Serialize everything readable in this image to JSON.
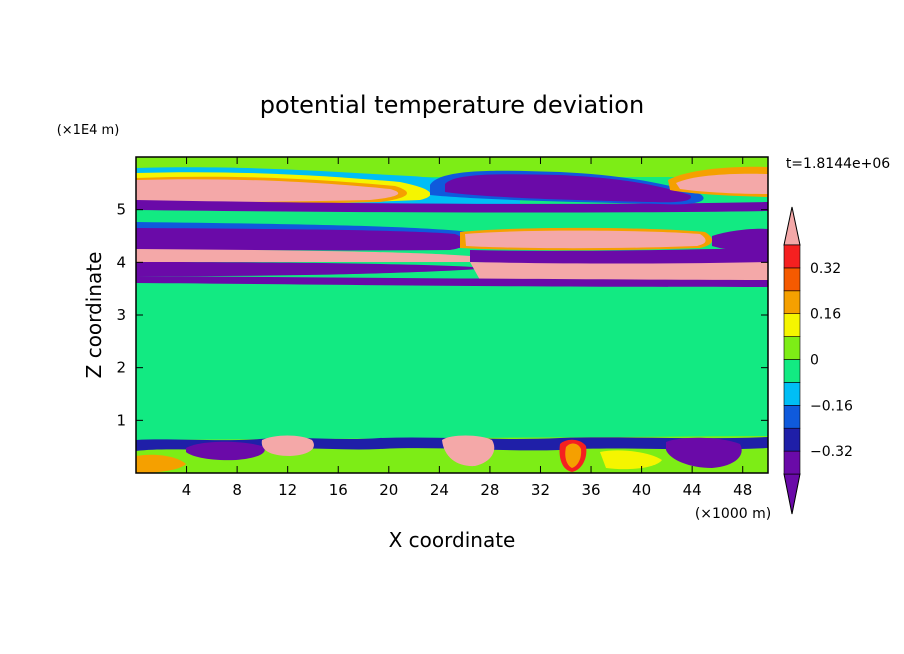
{
  "chart_data": {
    "type": "heatmap",
    "title": "potential temperature deviation",
    "xlabel": "X coordinate",
    "ylabel": "Z coordinate",
    "x_unit": "(×1000 m)",
    "y_unit": "(×1E4 m)",
    "time_label": "t=1.8144e+06",
    "xlim": [
      0,
      50
    ],
    "ylim": [
      0,
      6
    ],
    "x_ticks": [
      4,
      8,
      12,
      16,
      20,
      24,
      28,
      32,
      36,
      40,
      44,
      48
    ],
    "y_ticks": [
      1,
      2,
      3,
      4,
      5
    ],
    "colorbar": {
      "levels": [
        -0.4,
        -0.32,
        -0.24,
        -0.16,
        -0.08,
        0,
        0.08,
        0.16,
        0.24,
        0.32,
        0.4
      ],
      "labeled_ticks": [
        -0.32,
        -0.16,
        0,
        0.16,
        0.32
      ],
      "colors": [
        "#6a0aa8",
        "#1f1fa8",
        "#0f5adc",
        "#00bef5",
        "#12ea82",
        "#7ded16",
        "#f5f500",
        "#f5a000",
        "#f55a00",
        "#f52020"
      ],
      "over_color": "#f4a8a8",
      "under_color": "#6a0aa8"
    },
    "bands": [
      {
        "z": [
          5.55,
          5.9
        ],
        "value": "above 0.4",
        "region": "upper-left and upper-right"
      },
      {
        "z": [
          5.4,
          5.85
        ],
        "value": "below -0.4",
        "region": "x 24-44"
      },
      {
        "z": [
          4.25,
          4.6
        ],
        "value": "below -0.4",
        "region": "x 0-24"
      },
      {
        "z": [
          4.1,
          4.5
        ],
        "value": "above 0.4",
        "region": "x 24-43"
      },
      {
        "z": [
          3.85,
          4.2
        ],
        "value": "above 0.4",
        "region": "x 0-24"
      },
      {
        "z": [
          3.6,
          4.0
        ],
        "value": "below -0.4",
        "region": "full width"
      },
      {
        "z": [
          0,
          0.7
        ],
        "value": "mixed -0.4 to 0.4",
        "region": "boundary layer"
      }
    ]
  }
}
